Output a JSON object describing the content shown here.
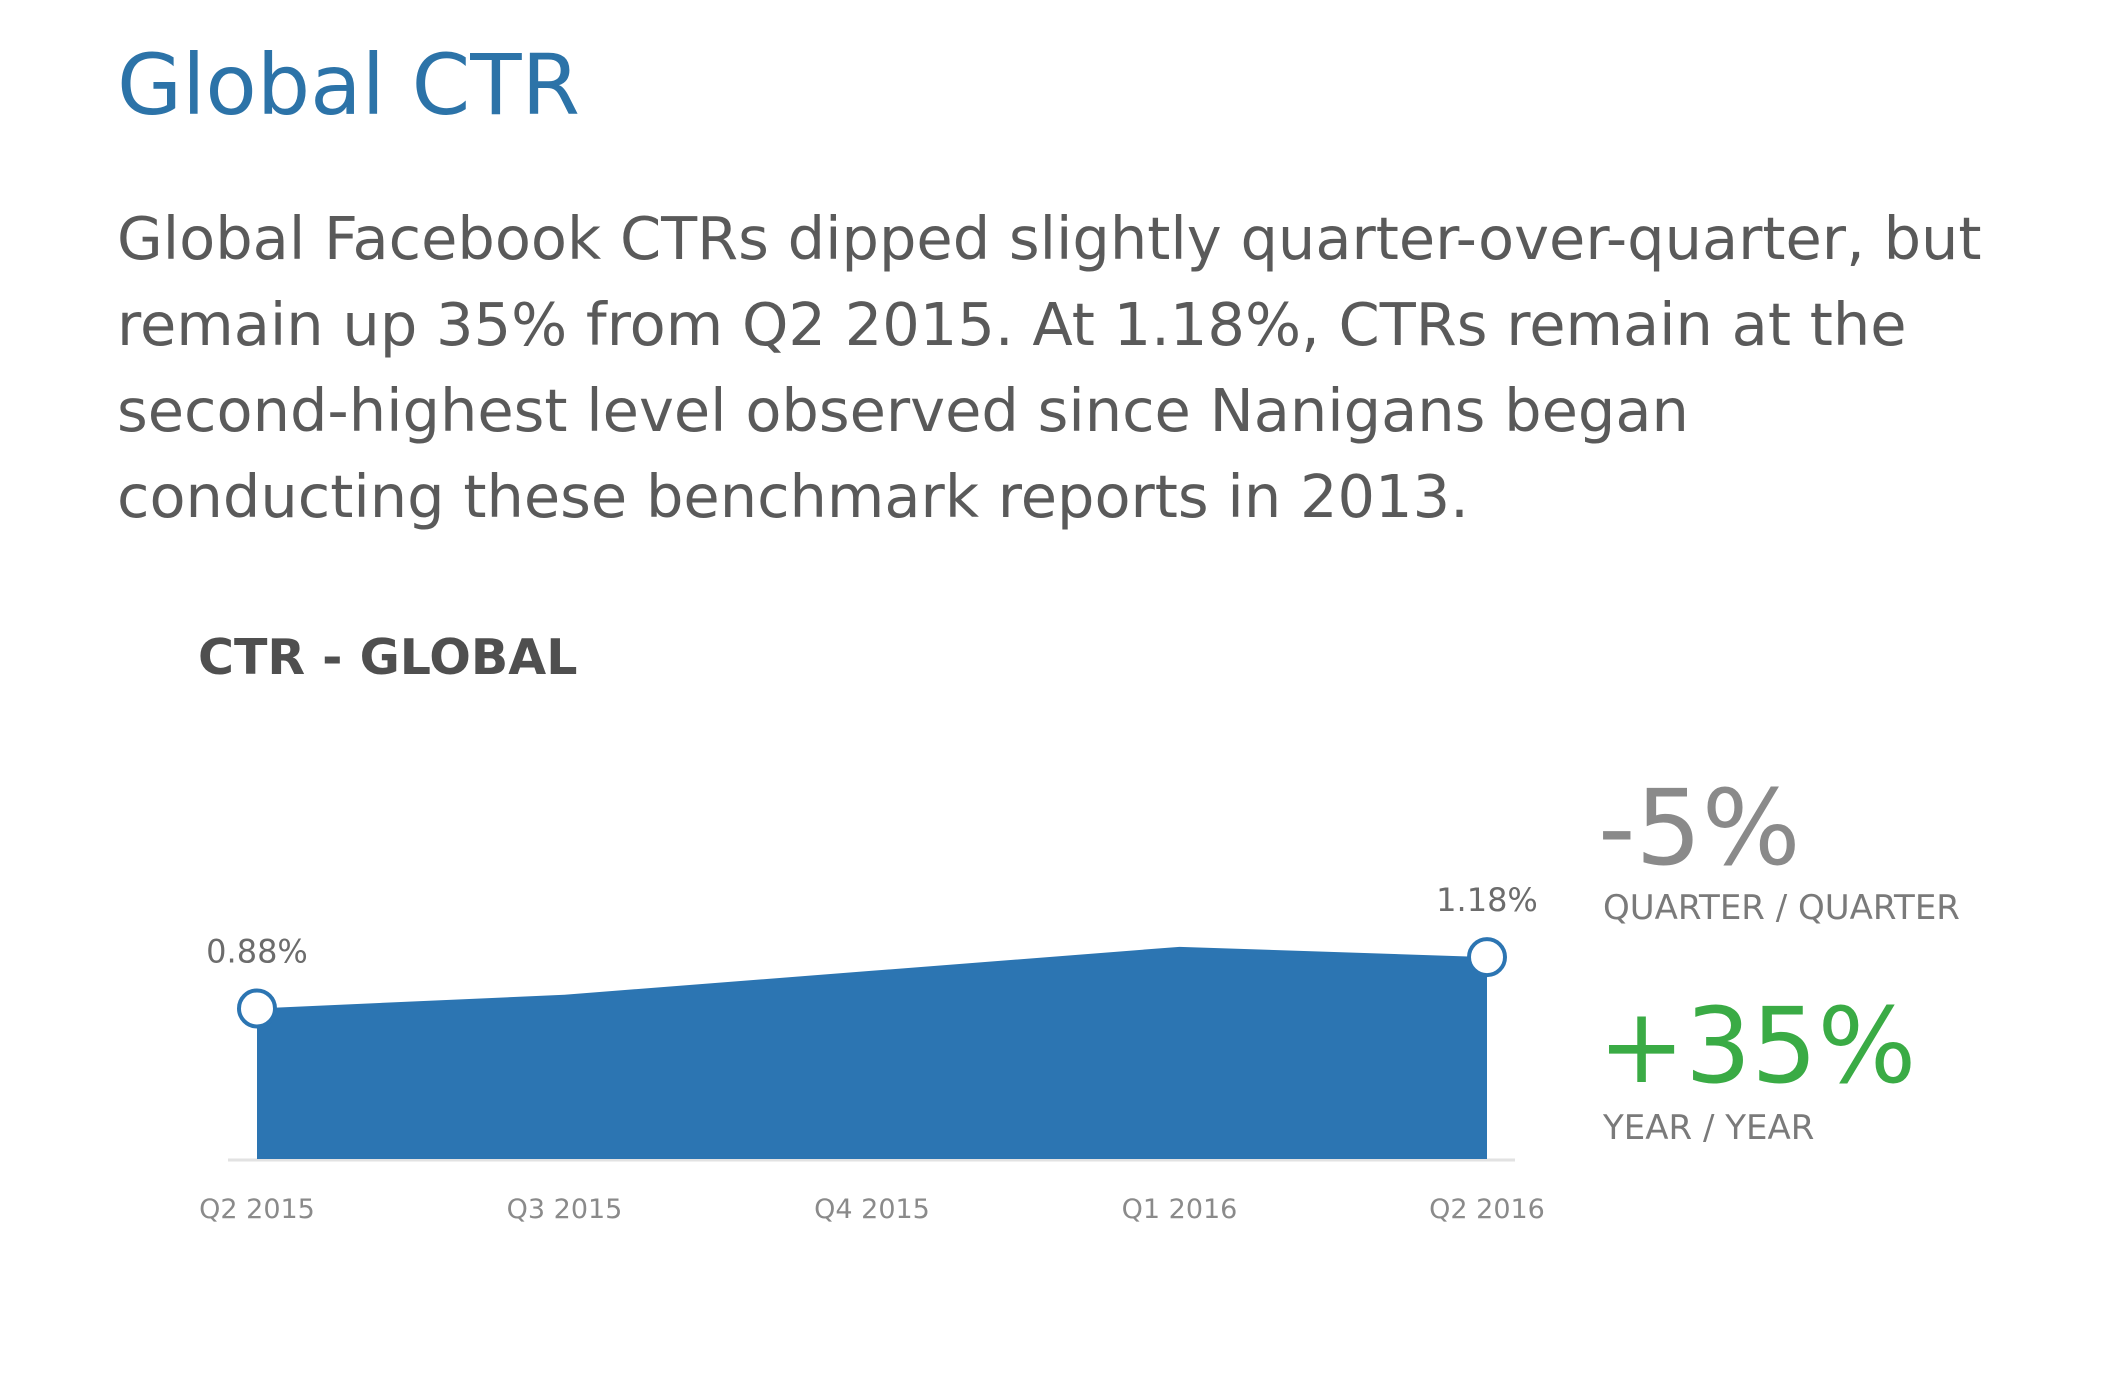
{
  "page": {
    "title": "Global CTR",
    "intro": "Global Facebook CTRs dipped slightly quarter-over-quarter, but remain up 35% from Q2 2015. At 1.18%, CTRs remain at the second-highest level observed since Nanigans began conducting these benchmark reports in 2013."
  },
  "stats": {
    "qoq": {
      "value": "-5%",
      "caption": "QUARTER / QUARTER",
      "color": "#8a8a8a"
    },
    "yoy": {
      "value": "+35%",
      "caption": "YEAR / YEAR",
      "color": "#3aab45"
    }
  },
  "chart_data": {
    "type": "area",
    "title": "CTR - GLOBAL",
    "xlabel": "",
    "ylabel": "",
    "categories": [
      "Q2 2015",
      "Q3 2015",
      "Q4 2015",
      "Q1 2016",
      "Q2 2016"
    ],
    "values": [
      0.88,
      0.96,
      1.1,
      1.24,
      1.18
    ],
    "unit": "%",
    "ylim": [
      0,
      1.6
    ],
    "grid": false,
    "legend": "none",
    "colors": {
      "fill": "#2c75b2",
      "axis": "#e2e2e2",
      "marker_stroke": "#2c75b2",
      "marker_fill": "#ffffff"
    },
    "data_labels": [
      {
        "index": 0,
        "text": "0.88%"
      },
      {
        "index": 4,
        "text": "1.18%"
      }
    ]
  }
}
